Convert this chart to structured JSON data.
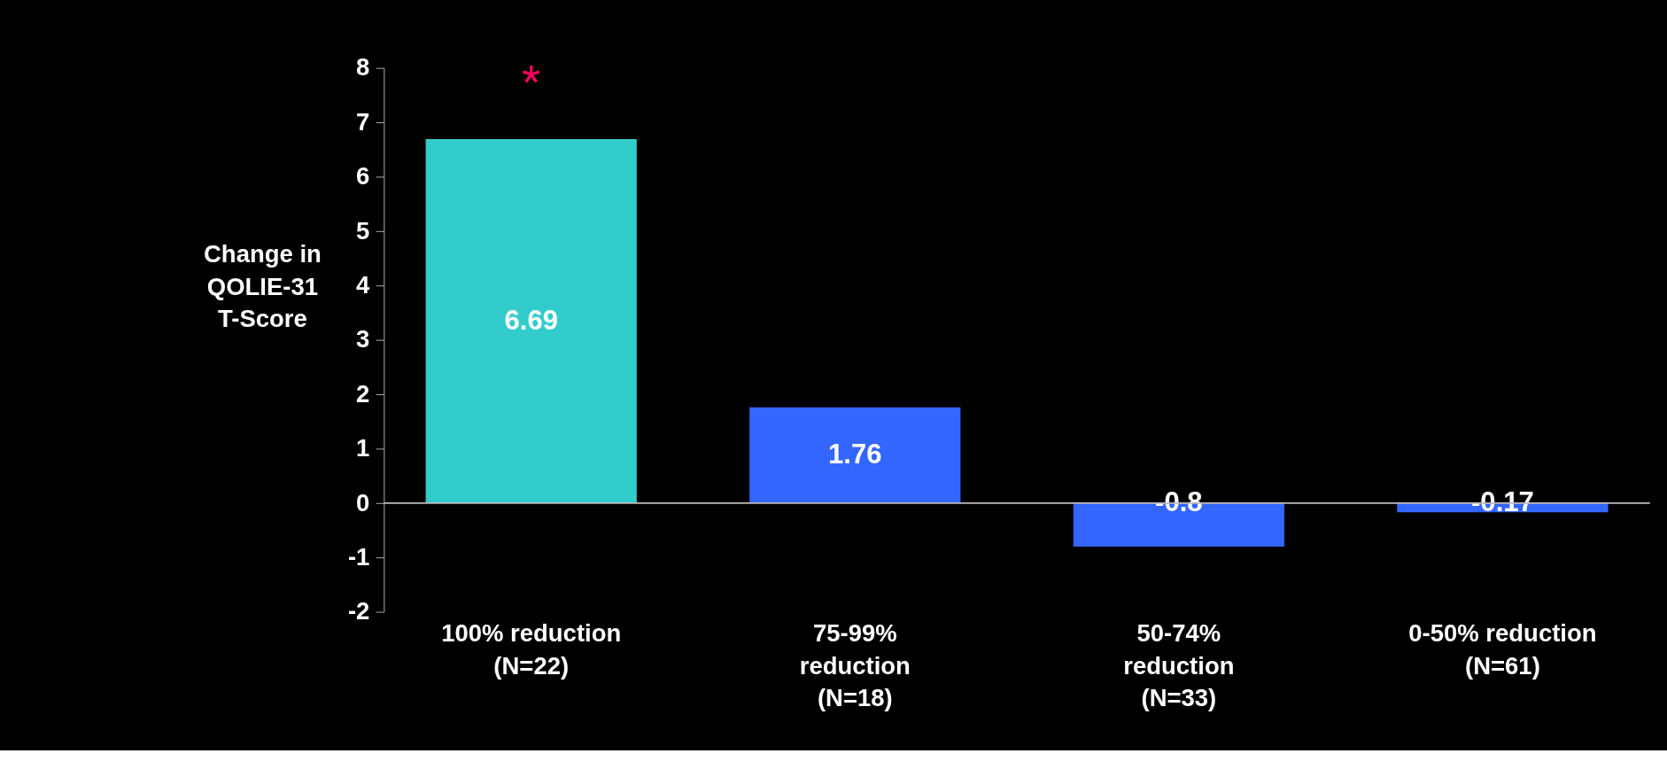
{
  "chart_data": {
    "type": "bar",
    "ylabel": "Change in\nQOLIE-31\nT-Score",
    "categories": [
      "100% reduction\n(N=22)",
      "75-99%\nreduction\n(N=18)",
      "50-74%\nreduction\n(N=33)",
      "0-50% reduction\n(N=61)"
    ],
    "values": [
      6.69,
      1.76,
      -0.8,
      -0.17
    ],
    "colors": [
      "#33cccc",
      "#3366ff",
      "#3366ff",
      "#3366ff"
    ],
    "ylim": [
      -2,
      8
    ],
    "yticks": [
      -2,
      -1,
      0,
      1,
      2,
      3,
      4,
      5,
      6,
      7,
      8
    ],
    "data_labels": true,
    "ref_lines": [
      {
        "axis": "y",
        "value": 0,
        "label": null,
        "color": "#bbbbbb"
      }
    ],
    "annotations": [
      "*"
    ],
    "grid": false
  }
}
